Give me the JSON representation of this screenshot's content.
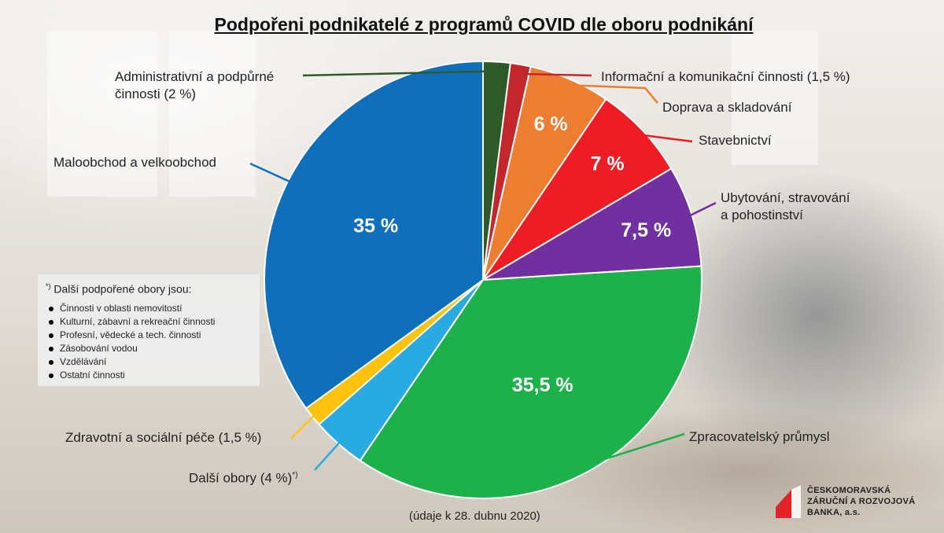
{
  "title": "Podpořeni podnikatelé z programů COVID dle oboru podnikání",
  "footer": "(údaje k 28. dubnu 2020)",
  "note": {
    "marker": "*)",
    "heading": "Další podpořené obory jsou:",
    "items": [
      "Činnosti v oblasti nemovitostí",
      "Kulturní, zábavní a rekreační činnosti",
      "Profesní, vědecké a tech. činnosti",
      "Zásobování vodou",
      "Vzdělávání",
      "Ostatní činnosti"
    ]
  },
  "logo": {
    "line1": "ČESKOMORAVSKÁ",
    "line2": "ZÁRUČNÍ A ROZVOJOVÁ",
    "line3": "BANKA, a.s.",
    "color": "#E2232A"
  },
  "labels": {
    "admin_line1": "Administrativní a podpůrné",
    "admin_line2": "činnosti (2 %)",
    "info": "Informační a komunikační činnosti (1,5 %)",
    "doprava": "Doprava a skladování",
    "stav": "Stavebnictví",
    "ubyt_line1": "Ubytování, stravování",
    "ubyt_line2": "a pohostinství",
    "zprac": "Zpracovatelský průmysl",
    "dalsi": "Další obory (4 %)",
    "dalsi_marker": "*)",
    "zdrav": "Zdravotní a sociální péče (1,5 %)",
    "malo": "Maloobchod a velkoobchod"
  },
  "chart_data": {
    "type": "pie",
    "title": "Podpořeni podnikatelé z programů COVID dle oboru podnikání",
    "unit": "%",
    "slices": [
      {
        "name": "Administrativní a podpůrné činnosti",
        "value": 2,
        "color": "#2E5A2A",
        "data_label": ""
      },
      {
        "name": "Informační a komunikační činnosti",
        "value": 1.5,
        "color": "#C1272D",
        "data_label": ""
      },
      {
        "name": "Doprava a skladování",
        "value": 6,
        "color": "#ED7D31",
        "data_label": "6 %"
      },
      {
        "name": "Stavebnictví",
        "value": 7,
        "color": "#EE1C25",
        "data_label": "7 %"
      },
      {
        "name": "Ubytování, stravování a pohostinství",
        "value": 7.5,
        "color": "#7030A0",
        "data_label": "7,5 %"
      },
      {
        "name": "Zpracovatelský průmysl",
        "value": 35.5,
        "color": "#1DB14B",
        "data_label": "35,5 %"
      },
      {
        "name": "Další obory",
        "value": 4,
        "color": "#29ABE2",
        "data_label": ""
      },
      {
        "name": "Zdravotní a sociální péče",
        "value": 1.5,
        "color": "#FFC20E",
        "data_label": ""
      },
      {
        "name": "Maloobchod a velkoobchod",
        "value": 35,
        "color": "#0F6FBA",
        "data_label": "35 %"
      }
    ]
  }
}
